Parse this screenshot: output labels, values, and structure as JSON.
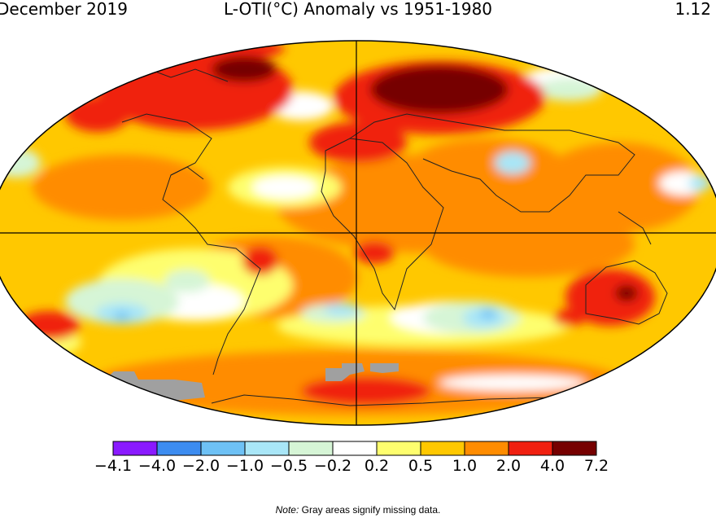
{
  "header": {
    "date": "December 2019",
    "title": "L-OTI(°C) Anomaly vs 1951-1980",
    "global_mean": "1.12"
  },
  "legend": {
    "bins": [
      {
        "color": "#8a1aff"
      },
      {
        "color": "#3c8cf0"
      },
      {
        "color": "#6ec1f5"
      },
      {
        "color": "#a9e6f7"
      },
      {
        "color": "#d6f5d6"
      },
      {
        "color": "#ffffff"
      },
      {
        "color": "#fefe6e"
      },
      {
        "color": "#ffc800"
      },
      {
        "color": "#ff8c00"
      },
      {
        "color": "#f02010"
      },
      {
        "color": "#760000"
      }
    ],
    "labels": [
      "−4.1",
      "−4.0",
      "−2.0",
      "−1.0",
      "−0.5",
      "−0.2",
      "0.2",
      "0.5",
      "1.0",
      "2.0",
      "4.0",
      "7.2"
    ]
  },
  "note": {
    "prefix": "Note:",
    "text": " Gray areas signify missing data."
  },
  "colors": {
    "warm_base": "#ffc800",
    "orange": "#ff8c00",
    "red": "#f02010",
    "dark_red": "#760000",
    "missing": "#a0a0a0"
  }
}
